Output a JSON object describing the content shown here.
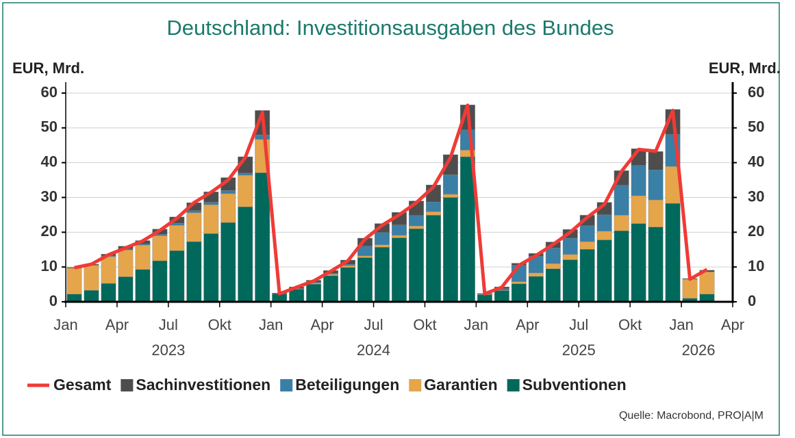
{
  "chart_data": {
    "type": "bar",
    "stacked": true,
    "title": "Deutschland: Investitionsausgaben des Bundes",
    "ylabel": "EUR, Mrd.",
    "y2label": "EUR, Mrd.",
    "source": "Quelle: Macrobond, PRO|A|M",
    "x": [
      "2023-01",
      "2023-02",
      "2023-03",
      "2023-04",
      "2023-05",
      "2023-06",
      "2023-07",
      "2023-08",
      "2023-09",
      "2023-10",
      "2023-11",
      "2023-12",
      "2024-01",
      "2024-02",
      "2024-03",
      "2024-04",
      "2024-05",
      "2024-06",
      "2024-07",
      "2024-08",
      "2024-09",
      "2024-10",
      "2024-11",
      "2024-12",
      "2025-01",
      "2025-02",
      "2025-03",
      "2025-04",
      "2025-05",
      "2025-06",
      "2025-07",
      "2025-08",
      "2025-09",
      "2025-10",
      "2025-11",
      "2025-12",
      "2026-01",
      "2026-02"
    ],
    "xlim": [
      "2023-01",
      "2026-04"
    ],
    "xticks": [
      {
        "value": "2023-01",
        "label": "Jan"
      },
      {
        "value": "2023-04",
        "label": "Apr"
      },
      {
        "value": "2023-07",
        "label": "Jul"
      },
      {
        "value": "2023-10",
        "label": "Okt"
      },
      {
        "value": "2024-01",
        "label": "Jan"
      },
      {
        "value": "2024-04",
        "label": "Apr"
      },
      {
        "value": "2024-07",
        "label": "Jul"
      },
      {
        "value": "2024-10",
        "label": "Okt"
      },
      {
        "value": "2025-01",
        "label": "Jan"
      },
      {
        "value": "2025-04",
        "label": "Apr"
      },
      {
        "value": "2025-07",
        "label": "Jul"
      },
      {
        "value": "2025-10",
        "label": "Okt"
      },
      {
        "value": "2026-01",
        "label": "Jan"
      },
      {
        "value": "2026-04",
        "label": "Apr"
      }
    ],
    "year_labels": [
      {
        "value": "2023-07",
        "label": "2023"
      },
      {
        "value": "2024-07",
        "label": "2024"
      },
      {
        "value": "2025-07",
        "label": "2025"
      },
      {
        "value": "2026-02",
        "label": "2026"
      }
    ],
    "ylim": [
      0,
      60
    ],
    "yticks": [
      0,
      10,
      20,
      30,
      40,
      50,
      60
    ],
    "y2lim": [
      0,
      60
    ],
    "y2ticks": [
      0,
      10,
      20,
      30,
      40,
      50,
      60
    ],
    "grid": true,
    "legend": "bottom",
    "series": [
      {
        "name": "Gesamt",
        "type": "line",
        "color": "#ef3b36",
        "values": [
          9.8,
          10.8,
          13.5,
          15.5,
          17.5,
          20.5,
          24,
          28.5,
          31.5,
          35,
          41.5,
          54.5,
          2.3,
          4.2,
          6,
          8.8,
          11.8,
          18,
          22,
          25,
          28.5,
          33,
          41.5,
          56.5,
          2.3,
          4.2,
          10.5,
          13.3,
          16.5,
          20,
          24.3,
          28,
          37.5,
          43.8,
          43.3,
          55,
          6.5,
          9.3
        ]
      },
      {
        "name": "Sachinvestitionen",
        "color": "#4d4d4d",
        "values": [
          0.2,
          0.3,
          0.5,
          0.8,
          1.0,
          1.5,
          1.8,
          2.3,
          3.0,
          3.7,
          4.7,
          7.0,
          0.3,
          0.5,
          0.6,
          0.8,
          1.2,
          2.3,
          2.6,
          3.6,
          4.2,
          4.9,
          5.8,
          7.2,
          0.2,
          0.5,
          0.6,
          0.8,
          1.7,
          2.5,
          3.0,
          3.6,
          4.2,
          4.8,
          5.3,
          7.2,
          0.2,
          0.5
        ]
      },
      {
        "name": "Beteiligungen",
        "color": "#3a7fa6",
        "values": [
          0,
          0,
          0.2,
          0.3,
          0.3,
          0.4,
          0.6,
          0.6,
          0.7,
          0.9,
          0.6,
          1.3,
          0,
          0.1,
          0.2,
          0.3,
          0.4,
          2.8,
          3.5,
          3.0,
          3.0,
          2.8,
          5.6,
          5.8,
          0.1,
          0.5,
          4.7,
          4.8,
          4.5,
          4.7,
          4.6,
          4.7,
          8.6,
          8.7,
          8.6,
          9.2,
          0,
          0
        ]
      },
      {
        "name": "Garantien",
        "color": "#e5a54b",
        "values": [
          7.5,
          7.2,
          7.7,
          7.7,
          7.0,
          7.2,
          7.3,
          8.3,
          8.3,
          8.3,
          9.1,
          9.6,
          0,
          0.1,
          0.3,
          0.4,
          0.5,
          0.5,
          0.7,
          0.7,
          0.8,
          1.0,
          0.9,
          1.9,
          0.1,
          0.1,
          0.6,
          1.0,
          1.5,
          1.5,
          2.2,
          2.5,
          4.5,
          8.0,
          7.8,
          10.6,
          5.5,
          6.4
        ]
      },
      {
        "name": "Subventionen",
        "color": "#00695c",
        "values": [
          2.2,
          3.3,
          5.3,
          7.2,
          9.3,
          11.8,
          14.7,
          17.3,
          19.6,
          22.8,
          27.3,
          37.1,
          2.2,
          3.6,
          5.1,
          7.5,
          9.9,
          12.7,
          15.7,
          18.4,
          21,
          24.9,
          30,
          41.7,
          2.0,
          3.2,
          5.2,
          7.3,
          9.5,
          12.1,
          15.1,
          17.8,
          20.4,
          22.5,
          21.5,
          28.3,
          1.0,
          2.2
        ]
      }
    ]
  }
}
